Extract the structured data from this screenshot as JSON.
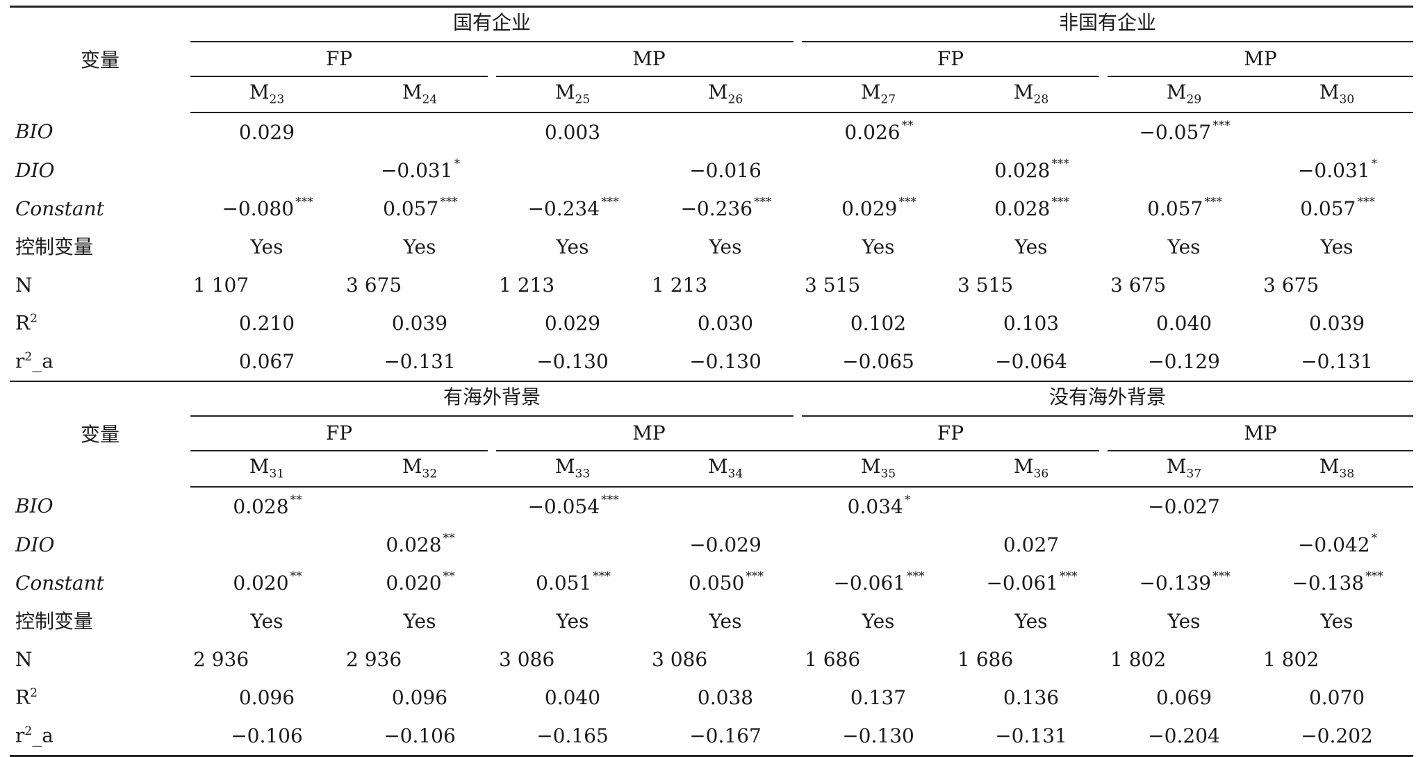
{
  "panels": [
    {
      "var_header": "变量",
      "groups": [
        "国有企业",
        "非国有企业"
      ],
      "subgroups": [
        "FP",
        "MP",
        "FP",
        "MP"
      ],
      "models": [
        "M23",
        "M24",
        "M25",
        "M26",
        "M27",
        "M28",
        "M29",
        "M30"
      ],
      "model_subs": [
        "23",
        "24",
        "25",
        "26",
        "27",
        "28",
        "29",
        "30"
      ],
      "rows": [
        {
          "label": "BIO",
          "italic": true,
          "cells": [
            [
              "0.029",
              ""
            ],
            [
              "",
              ""
            ],
            [
              "0.003",
              ""
            ],
            [
              "",
              ""
            ],
            [
              "0.026",
              "**"
            ],
            [
              "",
              ""
            ],
            [
              "−0.057",
              "***"
            ],
            [
              "",
              ""
            ]
          ]
        },
        {
          "label": "DIO",
          "italic": true,
          "cells": [
            [
              "",
              ""
            ],
            [
              "−0.031",
              "*"
            ],
            [
              "",
              ""
            ],
            [
              "−0.016",
              ""
            ],
            [
              "",
              ""
            ],
            [
              "0.028",
              "***"
            ],
            [
              "",
              ""
            ],
            [
              "−0.031",
              "*"
            ]
          ]
        },
        {
          "label": "Constant",
          "italic": true,
          "cells": [
            [
              "−0.080",
              "***"
            ],
            [
              "0.057",
              "***"
            ],
            [
              "−0.234",
              "***"
            ],
            [
              "−0.236",
              "***"
            ],
            [
              "0.029",
              "***"
            ],
            [
              "0.028",
              "***"
            ],
            [
              "0.057",
              "***"
            ],
            [
              "0.057",
              "***"
            ]
          ]
        },
        {
          "label": "控制变量",
          "italic": false,
          "cells": [
            [
              "Yes",
              ""
            ],
            [
              "Yes",
              ""
            ],
            [
              "Yes",
              ""
            ],
            [
              "Yes",
              ""
            ],
            [
              "Yes",
              ""
            ],
            [
              "Yes",
              ""
            ],
            [
              "Yes",
              ""
            ],
            [
              "Yes",
              ""
            ]
          ]
        },
        {
          "label": "N",
          "italic": false,
          "left": true,
          "cells": [
            [
              "1 107",
              ""
            ],
            [
              "3 675",
              ""
            ],
            [
              "1 213",
              ""
            ],
            [
              "1 213",
              ""
            ],
            [
              "3 515",
              ""
            ],
            [
              "3 515",
              ""
            ],
            [
              "3 675",
              ""
            ],
            [
              "3 675",
              ""
            ]
          ]
        },
        {
          "label": "R2",
          "italic": false,
          "cells": [
            [
              "0.210",
              ""
            ],
            [
              "0.039",
              ""
            ],
            [
              "0.029",
              ""
            ],
            [
              "0.030",
              ""
            ],
            [
              "0.102",
              ""
            ],
            [
              "0.103",
              ""
            ],
            [
              "0.040",
              ""
            ],
            [
              "0.039",
              ""
            ]
          ]
        },
        {
          "label": "r2_a",
          "italic": false,
          "cells": [
            [
              "0.067",
              ""
            ],
            [
              "−0.131",
              ""
            ],
            [
              "−0.130",
              ""
            ],
            [
              "−0.130",
              ""
            ],
            [
              "−0.065",
              ""
            ],
            [
              "−0.064",
              ""
            ],
            [
              "−0.129",
              ""
            ],
            [
              "−0.131",
              ""
            ]
          ]
        }
      ]
    },
    {
      "var_header": "变量",
      "groups": [
        "有海外背景",
        "没有海外背景"
      ],
      "subgroups": [
        "FP",
        "MP",
        "FP",
        "MP"
      ],
      "models": [
        "M31",
        "M32",
        "M33",
        "M34",
        "M35",
        "M36",
        "M37",
        "M38"
      ],
      "model_subs": [
        "31",
        "32",
        "33",
        "34",
        "35",
        "36",
        "37",
        "38"
      ],
      "rows": [
        {
          "label": "BIO",
          "italic": true,
          "cells": [
            [
              "0.028",
              "**"
            ],
            [
              "",
              ""
            ],
            [
              "−0.054",
              "***"
            ],
            [
              "",
              ""
            ],
            [
              "0.034",
              "*"
            ],
            [
              "",
              ""
            ],
            [
              "−0.027",
              ""
            ],
            [
              "",
              ""
            ]
          ]
        },
        {
          "label": "DIO",
          "italic": true,
          "cells": [
            [
              "",
              ""
            ],
            [
              "0.028",
              "**"
            ],
            [
              "",
              ""
            ],
            [
              "−0.029",
              ""
            ],
            [
              "",
              ""
            ],
            [
              "0.027",
              ""
            ],
            [
              "",
              ""
            ],
            [
              "−0.042",
              "*"
            ]
          ]
        },
        {
          "label": "Constant",
          "italic": true,
          "cells": [
            [
              "0.020",
              "**"
            ],
            [
              "0.020",
              "**"
            ],
            [
              "0.051",
              "***"
            ],
            [
              "0.050",
              "***"
            ],
            [
              "−0.061",
              "***"
            ],
            [
              "−0.061",
              "***"
            ],
            [
              "−0.139",
              "***"
            ],
            [
              "−0.138",
              "***"
            ]
          ]
        },
        {
          "label": "控制变量",
          "italic": false,
          "cells": [
            [
              "Yes",
              ""
            ],
            [
              "Yes",
              ""
            ],
            [
              "Yes",
              ""
            ],
            [
              "Yes",
              ""
            ],
            [
              "Yes",
              ""
            ],
            [
              "Yes",
              ""
            ],
            [
              "Yes",
              ""
            ],
            [
              "Yes",
              ""
            ]
          ]
        },
        {
          "label": "N",
          "italic": false,
          "left": true,
          "cells": [
            [
              "2 936",
              ""
            ],
            [
              "2 936",
              ""
            ],
            [
              "3 086",
              ""
            ],
            [
              "3 086",
              ""
            ],
            [
              "1 686",
              ""
            ],
            [
              "1 686",
              ""
            ],
            [
              "1 802",
              ""
            ],
            [
              "1 802",
              ""
            ]
          ]
        },
        {
          "label": "R2",
          "italic": false,
          "cells": [
            [
              "0.096",
              ""
            ],
            [
              "0.096",
              ""
            ],
            [
              "0.040",
              ""
            ],
            [
              "0.038",
              ""
            ],
            [
              "0.137",
              ""
            ],
            [
              "0.136",
              ""
            ],
            [
              "0.069",
              ""
            ],
            [
              "0.070",
              ""
            ]
          ]
        },
        {
          "label": "r2_a",
          "italic": false,
          "cells": [
            [
              "−0.106",
              ""
            ],
            [
              "−0.106",
              ""
            ],
            [
              "−0.165",
              ""
            ],
            [
              "−0.167",
              ""
            ],
            [
              "−0.130",
              ""
            ],
            [
              "−0.131",
              ""
            ],
            [
              "−0.204",
              ""
            ],
            [
              "−0.202",
              ""
            ]
          ]
        }
      ]
    }
  ]
}
